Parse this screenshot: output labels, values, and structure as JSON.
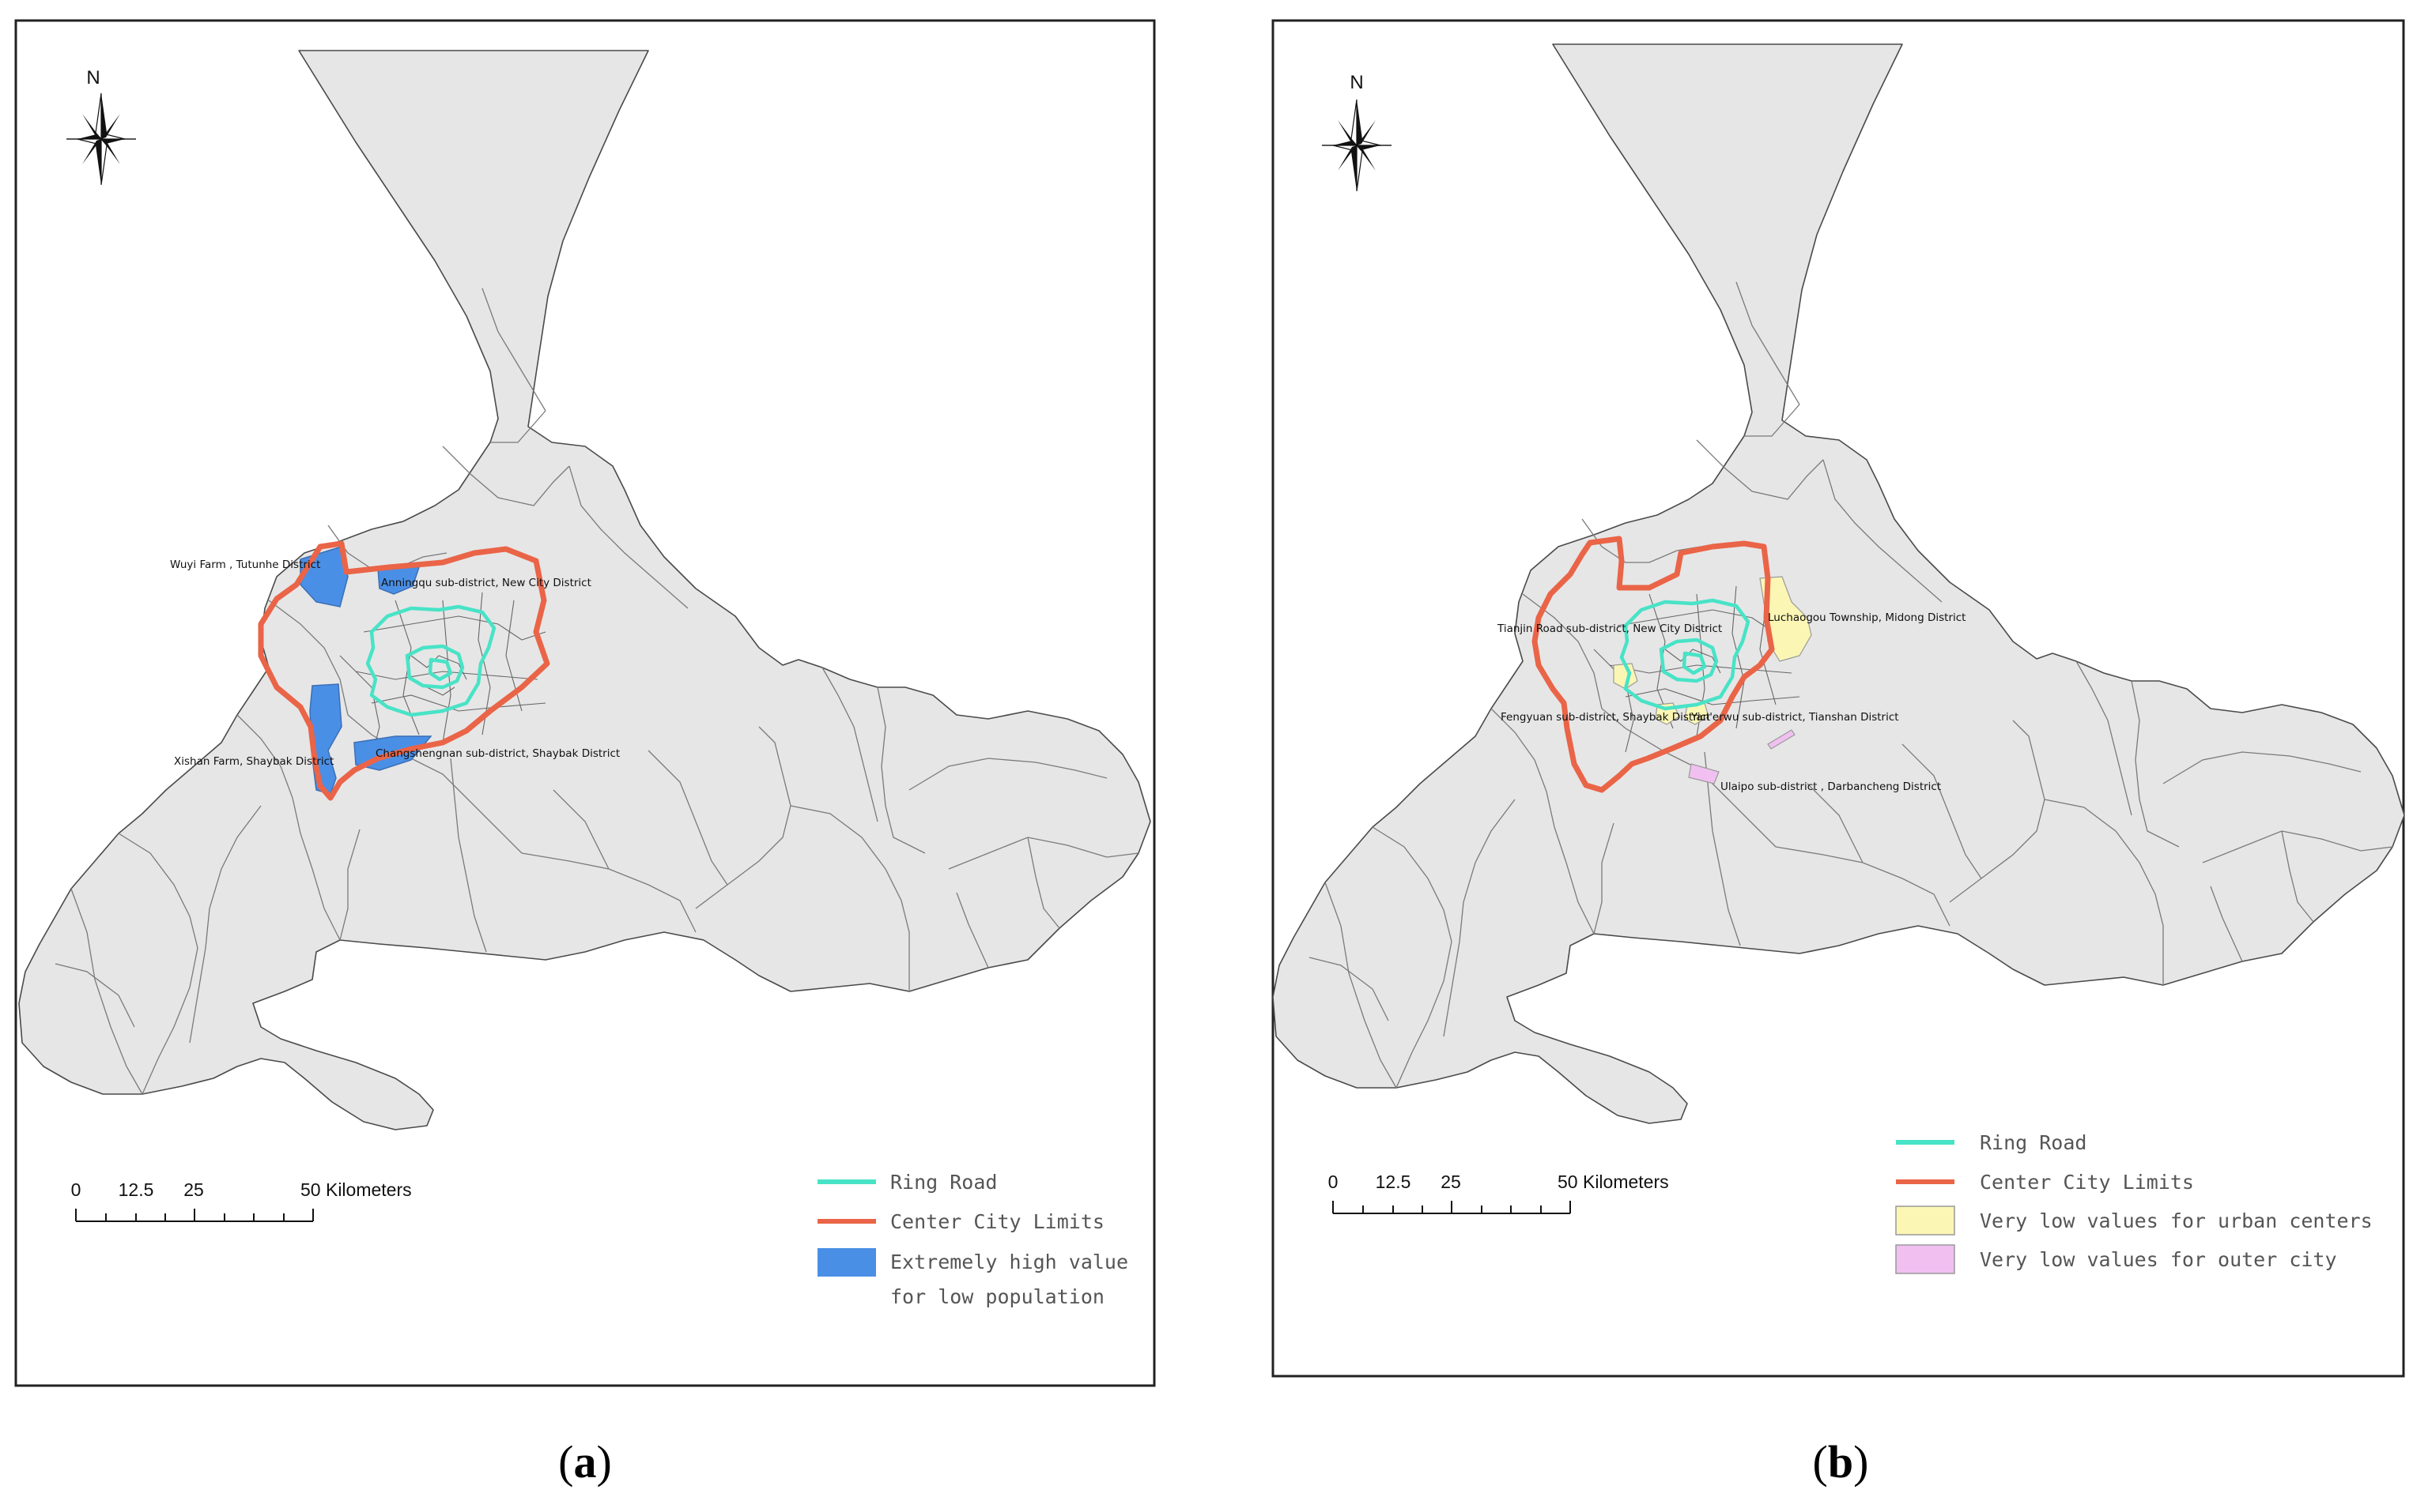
{
  "colors": {
    "ring_road": "#48e3c7",
    "center_city_limits": "#ea6447",
    "extremely_high": "#4a8fe6",
    "very_low_urban": "#fbf6b4",
    "very_low_outer": "#f1c0f1",
    "base_region": "#e6e6e6"
  },
  "icons": [
    "north-arrow-icon"
  ],
  "panels": [
    {
      "caption": "(a)",
      "caption_letter": "a",
      "north_label": "N",
      "scale": {
        "ticks": [
          "0",
          "12.5",
          "25",
          "50 Kilometers"
        ]
      },
      "places": [
        "Wuyi Farm , Tutunhe District",
        "Anningqu sub-district, New City District",
        "Xishan Farm, Shaybak District",
        "Changshengnan sub-district, Shaybak District"
      ],
      "legend": [
        {
          "label": "Ring Road",
          "symbol": "line"
        },
        {
          "label": "Center City Limits",
          "symbol": "line"
        },
        {
          "label": "Extremely high value",
          "label2": "for low population",
          "symbol": "box"
        }
      ]
    },
    {
      "caption": "(b)",
      "caption_letter": "b",
      "north_label": "N",
      "scale": {
        "ticks": [
          "0",
          "12.5",
          "25",
          "50 Kilometers"
        ]
      },
      "places": [
        "Tianjin Road sub-district, New City District",
        "Luchaogou Township, Midong District",
        "Fengyuan sub-district, Shaybak District",
        "Yan'erwu sub-district, Tianshan District",
        "Ulaipo sub-district , Darbancheng District"
      ],
      "legend": [
        {
          "label": "Ring Road",
          "symbol": "line"
        },
        {
          "label": "Center City Limits",
          "symbol": "line"
        },
        {
          "label": "Very low values for urban centers",
          "symbol": "box"
        },
        {
          "label": "Very low values for outer city",
          "symbol": "box"
        }
      ]
    }
  ]
}
